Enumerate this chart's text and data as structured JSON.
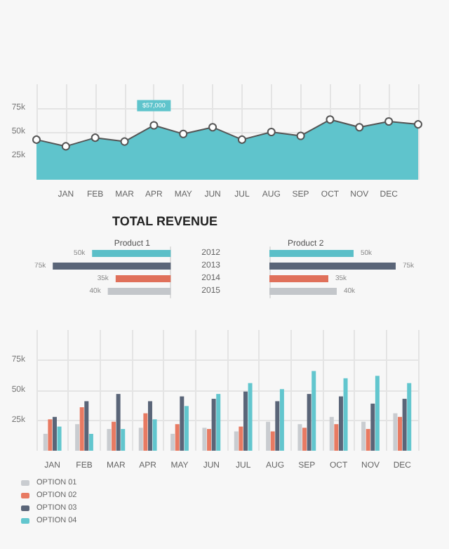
{
  "chart_data": [
    {
      "type": "area",
      "categories": [
        null,
        "JAN",
        "FEB",
        "MAR",
        "APR",
        "MAY",
        "JUN",
        "JUL",
        "AUG",
        "SEP",
        "OCT",
        "NOV",
        "DEC",
        null
      ],
      "series": [
        {
          "color": "#5fc4cc",
          "values": [
            42,
            35,
            44,
            40,
            57,
            48,
            55,
            42,
            50,
            46,
            63,
            55,
            61,
            58
          ]
        }
      ],
      "ylim": [
        0,
        100
      ],
      "yticks": [
        {
          "value": 25,
          "label": "25k"
        },
        {
          "value": 50,
          "label": "50k"
        },
        {
          "value": 75,
          "label": "75k"
        }
      ],
      "grid": true,
      "marker": "circle",
      "annotations": [
        {
          "text": "$57,000",
          "x": "APR",
          "y": 57
        }
      ]
    },
    {
      "type": "bar",
      "orientation": "horizontal",
      "title": "TOTAL REVENUE",
      "subtitle": "Product 1",
      "categories": [
        "2012",
        "2013",
        "2014",
        "2015"
      ],
      "values": [
        50,
        75,
        35,
        40
      ],
      "colors": [
        "#5bbfc8",
        "#5a6578",
        "#e0705a",
        "#c3c6ca"
      ],
      "value_labels": [
        "50k",
        "75k",
        "35k",
        "40k"
      ],
      "tick_labels": "y"
    },
    {
      "type": "bar",
      "orientation": "horizontal",
      "subtitle": "Product 2",
      "categories": [
        "2012",
        "2013",
        "2014",
        "2015"
      ],
      "values": [
        50,
        75,
        35,
        40
      ],
      "colors": [
        "#5bbfc8",
        "#5a6578",
        "#e0705a",
        "#c3c6ca"
      ],
      "value_labels": [
        "50k",
        "75k",
        "35k",
        "40k"
      ],
      "tick_labels": false
    },
    {
      "type": "bar",
      "categories": [
        "JAN",
        "FEB",
        "MAR",
        "APR",
        "MAY",
        "JUN",
        "JUL",
        "AUG",
        "SEP",
        "OCT",
        "NOV",
        "DEC"
      ],
      "series": [
        {
          "name": "OPTION 01",
          "color": "#c9ccd0",
          "values": [
            14,
            22,
            18,
            19,
            14,
            19,
            16,
            24,
            22,
            28,
            24,
            31
          ]
        },
        {
          "name": "OPTION 02",
          "color": "#e87a62",
          "values": [
            26,
            36,
            24,
            31,
            22,
            18,
            20,
            16,
            19,
            22,
            18,
            28
          ]
        },
        {
          "name": "OPTION 03",
          "color": "#5a6578",
          "values": [
            28,
            41,
            47,
            41,
            45,
            43,
            49,
            41,
            47,
            45,
            39,
            43
          ]
        },
        {
          "name": "OPTION 04",
          "color": "#62c6ce",
          "values": [
            20,
            14,
            18,
            26,
            37,
            47,
            56,
            51,
            66,
            60,
            62,
            56
          ]
        }
      ],
      "ylim": [
        0,
        100
      ],
      "yticks": [
        {
          "value": 25,
          "label": "25k"
        },
        {
          "value": 50,
          "label": "50k"
        },
        {
          "value": 75,
          "label": "75k"
        }
      ],
      "grid": true,
      "legend": "bottom left"
    }
  ]
}
